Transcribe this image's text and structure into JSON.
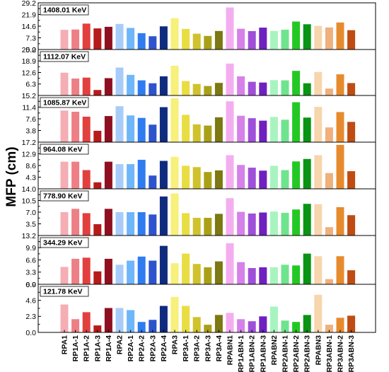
{
  "chart_data": {
    "type": "bar",
    "ylabel": "MFP (cm)",
    "categories": [
      "RPA1",
      "RP1A-1",
      "RP1A-2",
      "RP1A-3",
      "RP1A-4",
      "RPA2",
      "RP2A-1",
      "RP2A-2",
      "RP2A-3",
      "RP2A-4",
      "RPA3",
      "RP3A-1",
      "RP3A-2",
      "RP3A-3",
      "RP3A-4",
      "RPABN1",
      "RP1ABN-1",
      "RP1ABN-2",
      "RP1ABN-3",
      "RPABN2",
      "RP2ABN-1",
      "RP2ABN-2",
      "RP2ABN-3",
      "RPABN3",
      "RP3ABN-1",
      "RP3ABN-2",
      "RP3ABN-3"
    ],
    "colors": [
      "#f4aeb4",
      "#ee7f86",
      "#e2403f",
      "#b71a1a",
      "#8e1020",
      "#a8ccfa",
      "#6fb6fa",
      "#2f7cf0",
      "#2d54cc",
      "#0e2b7e",
      "#f7f07a",
      "#e8de42",
      "#cfc22c",
      "#aaa018",
      "#7c7812",
      "#f4aef0",
      "#d681e9",
      "#a04fd8",
      "#6e20c0",
      "#a8f4c0",
      "#6fe48e",
      "#24c824",
      "#0a9414",
      "#f7d6ae",
      "#efb07c",
      "#e58b2e",
      "#bf4c12"
    ],
    "panels": [
      {
        "label": "1408.01 KeV",
        "ylim": [
          0,
          29.2
        ],
        "ticks": [
          0.0,
          7.3,
          14.6,
          21.9,
          29.2
        ],
        "tick_labels": [
          "0.0",
          "7.3",
          "14.6",
          "21.9",
          "29.2"
        ],
        "values": [
          12.3,
          12.5,
          16.2,
          13.2,
          14.2,
          16.0,
          13.5,
          10.2,
          8.3,
          14.5,
          19.6,
          12.9,
          9.9,
          8.5,
          11.6,
          26.3,
          13.0,
          11.5,
          13.7,
          11.6,
          12.4,
          17.5,
          15.8,
          14.8,
          13.8,
          16.9,
          12.1
        ]
      },
      {
        "label": "1112.07 KeV",
        "ylim": [
          0,
          25.2
        ],
        "ticks": [
          6.3,
          12.6,
          18.9,
          25.2
        ],
        "tick_labels": [
          "6.3",
          "12.6",
          "18.9",
          "25.2"
        ],
        "values": [
          12.5,
          9.3,
          9.8,
          3.0,
          9.5,
          15.3,
          11.3,
          8.3,
          6.7,
          10.5,
          16.3,
          7.9,
          6.3,
          5.2,
          6.9,
          17.5,
          10.5,
          7.5,
          7.1,
          8.4,
          8.3,
          13.5,
          6.7,
          12.9,
          3.8,
          11.6,
          6.8
        ]
      },
      {
        "label": "1085.87 KeV",
        "ylim": [
          0,
          15.2
        ],
        "ticks": [
          3.8,
          7.6,
          11.4,
          15.2
        ],
        "tick_labels": [
          "3.8",
          "7.6",
          "11.4",
          "15.2"
        ],
        "values": [
          10.3,
          9.9,
          8.3,
          3.7,
          8.5,
          11.7,
          8.7,
          7.9,
          5.7,
          11.4,
          14.3,
          8.9,
          5.8,
          5.4,
          8.1,
          13.3,
          8.6,
          7.8,
          7.0,
          8.2,
          7.3,
          13.0,
          8.0,
          11.5,
          4.8,
          9.8,
          6.6
        ]
      },
      {
        "label": "964.08 KeV",
        "ylim": [
          0,
          17.2
        ],
        "ticks": [
          4.3,
          8.6,
          12.9,
          17.2
        ],
        "tick_labels": [
          "4.3",
          "8.6",
          "12.9",
          "17.2"
        ],
        "values": [
          10.0,
          10.0,
          6.9,
          2.4,
          10.0,
          9.1,
          9.1,
          10.7,
          4.9,
          10.3,
          11.8,
          8.5,
          8.0,
          6.2,
          6.8,
          12.4,
          8.8,
          7.8,
          6.7,
          8.5,
          6.9,
          10.1,
          11.0,
          12.4,
          5.8,
          16.2,
          6.5
        ]
      },
      {
        "label": "778.90 KeV",
        "ylim": [
          0,
          14.0
        ],
        "ticks": [
          3.5,
          7.0,
          10.5,
          14.0
        ],
        "tick_labels": [
          "3.5",
          "7.0",
          "10.5",
          "14.0"
        ],
        "values": [
          7.0,
          8.0,
          6.7,
          3.4,
          8.0,
          7.0,
          7.0,
          7.0,
          6.3,
          11.7,
          12.6,
          6.7,
          5.3,
          5.3,
          6.5,
          11.2,
          7.1,
          6.6,
          6.9,
          7.2,
          6.8,
          7.8,
          9.5,
          9.4,
          2.5,
          8.5,
          6.1
        ]
      },
      {
        "label": "344.29 KeV",
        "ylim": [
          0,
          13.2
        ],
        "ticks": [
          0.0,
          3.3,
          6.6,
          9.9,
          13.2
        ],
        "tick_labels": [
          "0.0",
          "3.3",
          "6.6",
          "9.9",
          "13.2"
        ],
        "values": [
          4.7,
          6.9,
          7.2,
          3.5,
          6.9,
          5.3,
          6.4,
          7.5,
          6.4,
          10.4,
          5.7,
          8.3,
          5.5,
          4.6,
          6.2,
          11.1,
          6.0,
          4.4,
          4.6,
          4.6,
          5.3,
          5.1,
          8.3,
          7.6,
          1.4,
          7.6,
          3.8
        ]
      },
      {
        "label": "121.78 KeV",
        "ylim": [
          0,
          6.9
        ],
        "ticks": [
          0.0,
          2.3,
          4.6,
          6.9
        ],
        "tick_labels": [
          "0.0",
          "2.3",
          "4.6",
          "6.9"
        ],
        "values": [
          4.0,
          1.9,
          2.9,
          1.0,
          3.5,
          3.5,
          3.2,
          1.5,
          1.8,
          3.8,
          5.1,
          3.8,
          2.2,
          1.1,
          2.5,
          2.8,
          1.9,
          1.6,
          2.3,
          3.7,
          1.7,
          1.5,
          2.5,
          5.4,
          1.1,
          2.1,
          2.4
        ]
      }
    ]
  }
}
